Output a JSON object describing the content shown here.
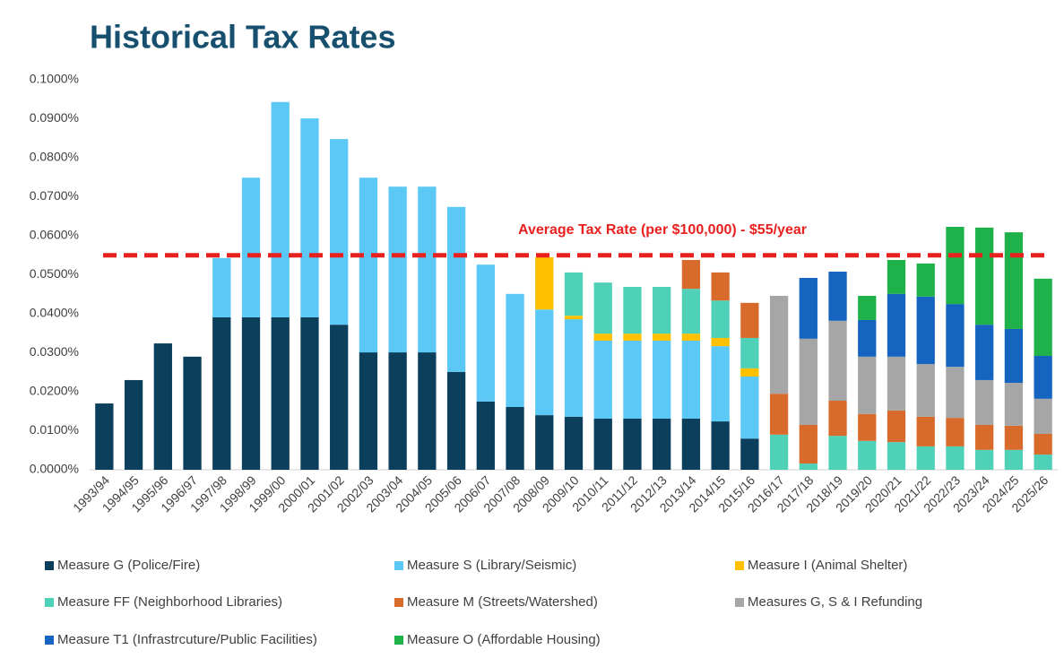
{
  "chart_data": {
    "type": "stacked_bar",
    "title": "Historical Tax Rates",
    "annotation": "Average Tax Rate (per $100,000) - $55/year",
    "average_line": 0.055,
    "categories": [
      "1993/94",
      "1994/95",
      "1995/96",
      "1996/97",
      "1997/98",
      "1998/99",
      "1999/00",
      "2000/01",
      "2001/02",
      "2002/03",
      "2003/04",
      "2004/05",
      "2005/06",
      "2006/07",
      "2007/08",
      "2008/09",
      "2009/10",
      "2010/11",
      "2011/12",
      "2012/13",
      "2013/14",
      "2014/15",
      "2015/16",
      "2016/17",
      "2017/18",
      "2018/19",
      "2019/20",
      "2020/21",
      "2021/22",
      "2022/23",
      "2023/24",
      "2024/25",
      "2025/26"
    ],
    "ylim": [
      0,
      0.1
    ],
    "yticks": [
      {
        "value": 0,
        "label": "0.0000%"
      },
      {
        "value": 0.01,
        "label": "0.0100%"
      },
      {
        "value": 0.02,
        "label": "0.0200%"
      },
      {
        "value": 0.03,
        "label": "0.0300%"
      },
      {
        "value": 0.04,
        "label": "0.0400%"
      },
      {
        "value": 0.05,
        "label": "0.0500%"
      },
      {
        "value": 0.06,
        "label": "0.0600%"
      },
      {
        "value": 0.07,
        "label": "0.0700%"
      },
      {
        "value": 0.08,
        "label": "0.0800%"
      },
      {
        "value": 0.09,
        "label": "0.0900%"
      },
      {
        "value": 0.1,
        "label": "0.1000%"
      }
    ],
    "grid": false,
    "series": [
      {
        "name": "Measure G (Police/Fire)",
        "color": "#0b3f5c",
        "values": [
          0.017,
          0.023,
          0.0324,
          0.029,
          0.0391,
          0.0391,
          0.0391,
          0.0391,
          0.0372,
          0.0301,
          0.0301,
          0.0301,
          0.0251,
          0.0175,
          0.0161,
          0.014,
          0.0136,
          0.0131,
          0.0131,
          0.0131,
          0.0131,
          0.0124,
          0.008,
          null,
          null,
          null,
          null,
          null,
          null,
          null,
          null,
          null,
          null
        ]
      },
      {
        "name": "Measure S (Library/Seismic)",
        "color": "#5bc8f5",
        "values": [
          null,
          null,
          null,
          null,
          0.0152,
          0.0358,
          0.0552,
          0.051,
          0.0476,
          0.0448,
          0.0425,
          0.0425,
          0.0423,
          0.0351,
          0.029,
          0.0271,
          0.025,
          0.02,
          0.02,
          0.02,
          0.02,
          0.0193,
          0.0159,
          null,
          null,
          null,
          null,
          null,
          null,
          null,
          null,
          null,
          null
        ]
      },
      {
        "name": "Measure I (Animal Shelter)",
        "color": "#ffc000",
        "values": [
          null,
          null,
          null,
          null,
          null,
          null,
          null,
          null,
          null,
          null,
          null,
          null,
          null,
          null,
          null,
          0.0134,
          0.0009,
          0.0018,
          0.0018,
          0.0018,
          0.0018,
          0.0021,
          0.0021,
          null,
          null,
          null,
          null,
          null,
          null,
          null,
          null,
          null,
          null
        ]
      },
      {
        "name": "Measure FF (Neighborhood Libraries)",
        "color": "#4fd1b8",
        "values": [
          null,
          null,
          null,
          null,
          null,
          null,
          null,
          null,
          null,
          null,
          null,
          null,
          null,
          null,
          null,
          null,
          0.0111,
          0.0131,
          0.012,
          0.012,
          0.0115,
          0.0096,
          0.0078,
          0.009,
          0.0016,
          0.0087,
          0.0074,
          0.0071,
          0.006,
          0.006,
          0.0051,
          0.0051,
          0.0039
        ]
      },
      {
        "name": "Measure M (Streets/Watershed)",
        "color": "#d86b2c",
        "values": [
          null,
          null,
          null,
          null,
          null,
          null,
          null,
          null,
          null,
          null,
          null,
          null,
          null,
          null,
          null,
          null,
          null,
          null,
          null,
          null,
          0.0074,
          0.0072,
          0.009,
          0.0105,
          0.0099,
          0.009,
          0.0069,
          0.0081,
          0.0076,
          0.0073,
          0.0064,
          0.0062,
          0.0053
        ]
      },
      {
        "name": "Measures G, S & I Refunding",
        "color": "#a6a6a6",
        "values": [
          null,
          null,
          null,
          null,
          null,
          null,
          null,
          null,
          null,
          null,
          null,
          null,
          null,
          null,
          null,
          null,
          null,
          null,
          null,
          null,
          null,
          null,
          null,
          0.0251,
          0.0221,
          0.0205,
          0.0147,
          0.0138,
          0.0135,
          0.0131,
          0.0115,
          0.011,
          0.009
        ]
      },
      {
        "name": "Measure T1 (Infrastrcuture/Public Facilities)",
        "color": "#1565c0",
        "values": [
          null,
          null,
          null,
          null,
          null,
          null,
          null,
          null,
          null,
          null,
          null,
          null,
          null,
          null,
          null,
          null,
          null,
          null,
          null,
          null,
          null,
          null,
          null,
          null,
          0.0156,
          0.0126,
          0.0094,
          0.0161,
          0.0173,
          0.0161,
          0.0142,
          0.0138,
          0.011
        ]
      },
      {
        "name": "Measure O (Affordable Housing)",
        "color": "#1fb24a",
        "values": [
          null,
          null,
          null,
          null,
          null,
          null,
          null,
          null,
          null,
          null,
          null,
          null,
          null,
          null,
          null,
          null,
          null,
          null,
          null,
          null,
          null,
          null,
          null,
          null,
          null,
          null,
          0.0062,
          0.0087,
          0.0085,
          0.0198,
          0.0249,
          0.0248,
          0.0198
        ]
      }
    ]
  }
}
